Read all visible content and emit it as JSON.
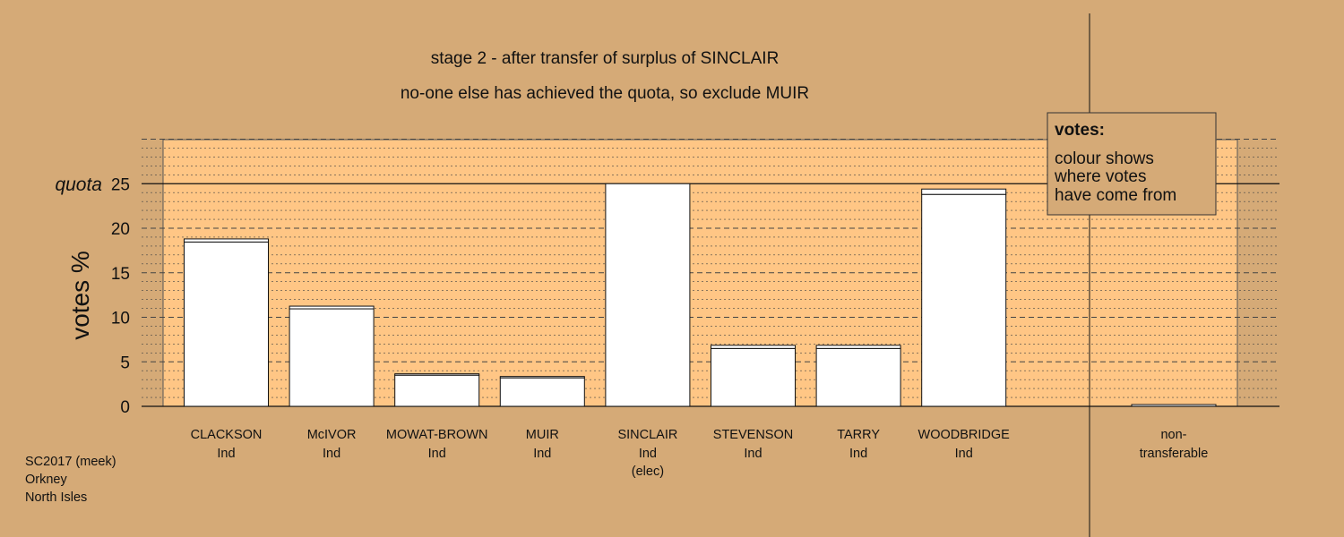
{
  "chart_data": {
    "type": "bar",
    "title": "stage 2 - after transfer of surplus of SINCLAIR",
    "subtitle": "no-one else has achieved the quota, so exclude MUIR",
    "ylabel": "votes %",
    "ylim": [
      0,
      30
    ],
    "yticks": [
      0,
      5,
      10,
      15,
      20,
      25
    ],
    "quota": {
      "label": "quota",
      "value": 25
    },
    "categories": [
      {
        "name": "CLACKSON",
        "party": "Ind",
        "note": ""
      },
      {
        "name": "McIVOR",
        "party": "Ind",
        "note": ""
      },
      {
        "name": "MOWAT-BROWN",
        "party": "Ind",
        "note": ""
      },
      {
        "name": "MUIR",
        "party": "Ind",
        "note": ""
      },
      {
        "name": "SINCLAIR",
        "party": "Ind",
        "note": "(elec)"
      },
      {
        "name": "STEVENSON",
        "party": "Ind",
        "note": ""
      },
      {
        "name": "TARRY",
        "party": "Ind",
        "note": ""
      },
      {
        "name": "WOODBRIDGE",
        "party": "Ind",
        "note": ""
      }
    ],
    "series": [
      {
        "values": [
          18.45,
          10.95,
          3.5,
          3.2,
          25.0,
          6.5,
          6.5,
          23.8
        ]
      },
      {
        "values": [
          0.35,
          0.3,
          0.15,
          0.15,
          0.0,
          0.35,
          0.35,
          0.6
        ]
      }
    ],
    "nontransferable": {
      "label_line1": "non-",
      "label_line2": "transferable",
      "value": 0.2
    },
    "legend": {
      "heading": "votes:",
      "lines": [
        "colour shows",
        "where votes",
        "have come from"
      ],
      "placement": "top-right"
    },
    "grid": true
  },
  "footer": {
    "lines": [
      "SC2017 (meek)",
      "Orkney",
      "North Isles"
    ]
  },
  "colors": {
    "background": "#d5aa77",
    "plot_fill": "#ffc685",
    "bar_fill": "#ffffff",
    "line": "#111111",
    "grid": "#444444"
  }
}
